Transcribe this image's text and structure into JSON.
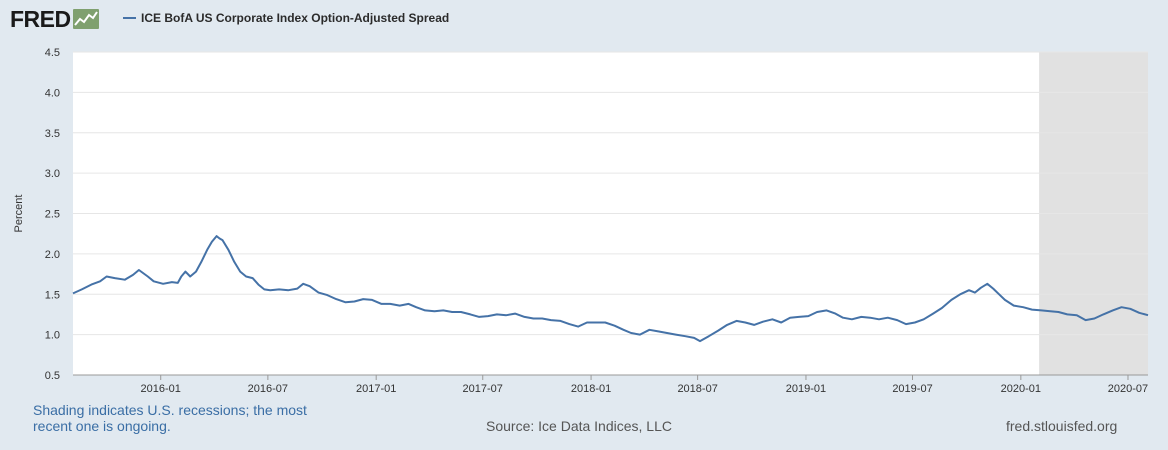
{
  "header": {
    "logo_text": "FRED",
    "legend_label": "ICE BofA US Corporate Index Option-Adjusted Spread"
  },
  "footer": {
    "note": "Shading indicates U.S. recessions; the most recent one is ongoing.",
    "source": "Source: Ice Data Indices, LLC",
    "site": "fred.stlouisfed.org"
  },
  "colors": {
    "line": "#4572a7",
    "recession": "#e1e1e1",
    "plot_bg": "#ffffff",
    "page_bg": "#e1e9f0",
    "grid": "#e6e6e6"
  },
  "chart_data": {
    "type": "line",
    "title": "",
    "xlabel": "",
    "ylabel": "Percent",
    "xlim": [
      "2015-08-05",
      "2020-08-04"
    ],
    "ylim": [
      0.5,
      4.5
    ],
    "y_ticks": [
      0.5,
      1.0,
      1.5,
      2.0,
      2.5,
      3.0,
      3.5,
      4.0,
      4.5
    ],
    "x_ticks": [
      "2016-01",
      "2016-07",
      "2017-01",
      "2017-07",
      "2018-01",
      "2018-07",
      "2019-01",
      "2019-07",
      "2020-01",
      "2020-07"
    ],
    "grid": true,
    "legend": "top-left",
    "recessions": [
      {
        "start": "2020-02-01",
        "end": "2020-08-04"
      }
    ],
    "series": [
      {
        "name": "ICE BofA US Corporate Index Option-Adjusted Spread",
        "points": [
          [
            "2015-08-05",
            1.51
          ],
          [
            "2015-08-20",
            1.56
          ],
          [
            "2015-09-05",
            1.62
          ],
          [
            "2015-09-20",
            1.66
          ],
          [
            "2015-10-01",
            1.72
          ],
          [
            "2015-10-15",
            1.7
          ],
          [
            "2015-11-01",
            1.68
          ],
          [
            "2015-11-15",
            1.74
          ],
          [
            "2015-11-25",
            1.8
          ],
          [
            "2015-12-10",
            1.72
          ],
          [
            "2015-12-20",
            1.66
          ],
          [
            "2016-01-05",
            1.63
          ],
          [
            "2016-01-20",
            1.65
          ],
          [
            "2016-01-30",
            1.64
          ],
          [
            "2016-02-05",
            1.72
          ],
          [
            "2016-02-12",
            1.78
          ],
          [
            "2016-02-20",
            1.72
          ],
          [
            "2016-03-01",
            1.78
          ],
          [
            "2016-03-10",
            1.9
          ],
          [
            "2016-03-20",
            2.05
          ],
          [
            "2016-03-28",
            2.15
          ],
          [
            "2016-04-05",
            2.22
          ],
          [
            "2016-04-10",
            2.19
          ],
          [
            "2016-04-15",
            2.17
          ],
          [
            "2016-04-25",
            2.05
          ],
          [
            "2016-05-05",
            1.9
          ],
          [
            "2016-05-15",
            1.78
          ],
          [
            "2016-05-25",
            1.72
          ],
          [
            "2016-06-05",
            1.7
          ],
          [
            "2016-06-15",
            1.62
          ],
          [
            "2016-06-25",
            1.56
          ],
          [
            "2016-07-05",
            1.55
          ],
          [
            "2016-07-20",
            1.56
          ],
          [
            "2016-08-05",
            1.55
          ],
          [
            "2016-08-20",
            1.57
          ],
          [
            "2016-08-30",
            1.63
          ],
          [
            "2016-09-10",
            1.6
          ],
          [
            "2016-09-25",
            1.52
          ],
          [
            "2016-10-10",
            1.49
          ],
          [
            "2016-10-25",
            1.44
          ],
          [
            "2016-11-10",
            1.4
          ],
          [
            "2016-11-25",
            1.41
          ],
          [
            "2016-12-10",
            1.44
          ],
          [
            "2016-12-25",
            1.43
          ],
          [
            "2017-01-10",
            1.38
          ],
          [
            "2017-01-25",
            1.38
          ],
          [
            "2017-02-10",
            1.36
          ],
          [
            "2017-02-25",
            1.38
          ],
          [
            "2017-03-10",
            1.34
          ],
          [
            "2017-03-25",
            1.3
          ],
          [
            "2017-04-10",
            1.29
          ],
          [
            "2017-04-25",
            1.3
          ],
          [
            "2017-05-10",
            1.28
          ],
          [
            "2017-05-25",
            1.28
          ],
          [
            "2017-06-10",
            1.25
          ],
          [
            "2017-06-25",
            1.22
          ],
          [
            "2017-07-10",
            1.23
          ],
          [
            "2017-07-25",
            1.25
          ],
          [
            "2017-08-10",
            1.24
          ],
          [
            "2017-08-25",
            1.26
          ],
          [
            "2017-09-10",
            1.22
          ],
          [
            "2017-09-25",
            1.2
          ],
          [
            "2017-10-10",
            1.2
          ],
          [
            "2017-10-25",
            1.18
          ],
          [
            "2017-11-10",
            1.17
          ],
          [
            "2017-11-25",
            1.13
          ],
          [
            "2017-12-10",
            1.1
          ],
          [
            "2017-12-25",
            1.15
          ],
          [
            "2018-01-10",
            1.15
          ],
          [
            "2018-01-25",
            1.15
          ],
          [
            "2018-02-10",
            1.11
          ],
          [
            "2018-02-25",
            1.06
          ],
          [
            "2018-03-10",
            1.02
          ],
          [
            "2018-03-25",
            1.0
          ],
          [
            "2018-04-10",
            1.06
          ],
          [
            "2018-04-25",
            1.04
          ],
          [
            "2018-05-10",
            1.02
          ],
          [
            "2018-05-25",
            1.0
          ],
          [
            "2018-06-10",
            0.98
          ],
          [
            "2018-06-25",
            0.96
          ],
          [
            "2018-07-05",
            0.92
          ],
          [
            "2018-07-20",
            0.98
          ],
          [
            "2018-08-05",
            1.05
          ],
          [
            "2018-08-20",
            1.12
          ],
          [
            "2018-09-05",
            1.17
          ],
          [
            "2018-09-20",
            1.15
          ],
          [
            "2018-10-05",
            1.12
          ],
          [
            "2018-10-20",
            1.16
          ],
          [
            "2018-11-05",
            1.19
          ],
          [
            "2018-11-20",
            1.15
          ],
          [
            "2018-12-05",
            1.21
          ],
          [
            "2018-12-20",
            1.22
          ],
          [
            "2019-01-05",
            1.23
          ],
          [
            "2019-01-20",
            1.28
          ],
          [
            "2019-02-05",
            1.3
          ],
          [
            "2019-02-20",
            1.26
          ],
          [
            "2019-03-05",
            1.21
          ],
          [
            "2019-03-20",
            1.19
          ],
          [
            "2019-04-05",
            1.22
          ],
          [
            "2019-04-20",
            1.21
          ],
          [
            "2019-05-05",
            1.19
          ],
          [
            "2019-05-20",
            1.21
          ],
          [
            "2019-06-05",
            1.18
          ],
          [
            "2019-06-20",
            1.13
          ],
          [
            "2019-07-05",
            1.15
          ],
          [
            "2019-07-20",
            1.19
          ],
          [
            "2019-08-05",
            1.26
          ],
          [
            "2019-08-20",
            1.33
          ],
          [
            "2019-09-05",
            1.43
          ],
          [
            "2019-09-20",
            1.5
          ],
          [
            "2019-10-05",
            1.55
          ],
          [
            "2019-10-15",
            1.52
          ],
          [
            "2019-10-25",
            1.58
          ],
          [
            "2019-11-05",
            1.63
          ],
          [
            "2019-11-15",
            1.57
          ],
          [
            "2019-11-25",
            1.5
          ],
          [
            "2019-12-05",
            1.43
          ],
          [
            "2019-12-20",
            1.36
          ],
          [
            "2020-01-05",
            1.34
          ],
          [
            "2020-01-20",
            1.31
          ],
          [
            "2020-02-05",
            1.3
          ],
          [
            "2020-02-20",
            1.29
          ],
          [
            "2020-03-05",
            1.28
          ],
          [
            "2020-03-20",
            1.25
          ],
          [
            "2020-04-05",
            1.24
          ],
          [
            "2020-04-20",
            1.18
          ],
          [
            "2020-05-05",
            1.2
          ],
          [
            "2020-05-20",
            1.25
          ],
          [
            "2020-06-05",
            1.3
          ],
          [
            "2020-06-20",
            1.34
          ],
          [
            "2020-07-05",
            1.32
          ],
          [
            "2020-07-20",
            1.27
          ],
          [
            "2020-08-04",
            1.24
          ]
        ]
      }
    ]
  }
}
